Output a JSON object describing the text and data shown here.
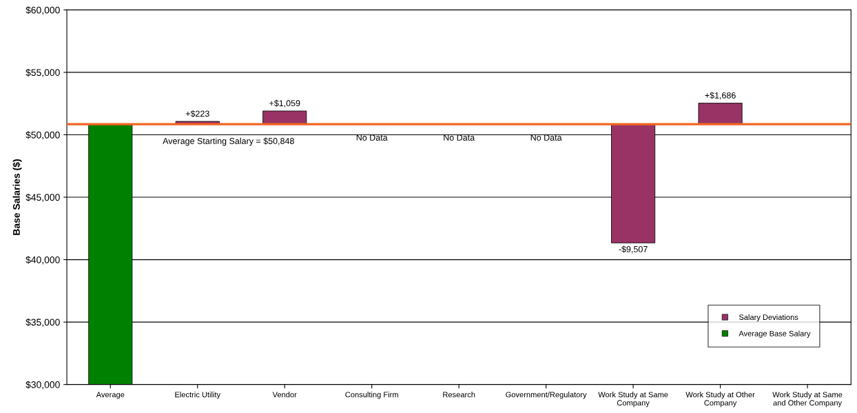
{
  "chart_data": {
    "type": "bar",
    "ylabel": "Base Salaries ($)",
    "categories": [
      "Average",
      "Electric Utility",
      "Vendor",
      "Consulting Firm",
      "Research",
      "Government/Regulatory",
      "Work Study at Same\nCompany",
      "Work Study at Other\nCompany",
      "Work Study at Same\nand Other Company"
    ],
    "series": [
      {
        "name": "Salary Deviations",
        "color": "#993366",
        "values": [
          null,
          223,
          1059,
          null,
          null,
          null,
          -9507,
          1686,
          null
        ],
        "base": [
          null,
          50848,
          50848,
          null,
          null,
          null,
          50848,
          50848,
          null
        ],
        "value_labels": [
          null,
          "+$223",
          "+$1,059",
          "No Data",
          "No Data",
          "No Data",
          "-$9,507",
          "+$1,686",
          null
        ]
      },
      {
        "name": "Average Base Salary",
        "color": "#008000",
        "values": [
          20848,
          null,
          null,
          null,
          null,
          null,
          null,
          null,
          null
        ],
        "base": [
          30000,
          null,
          null,
          null,
          null,
          null,
          null,
          null,
          null
        ]
      }
    ],
    "ref_lines": [
      {
        "axis": "y",
        "value": 50848,
        "label": "Average Starting Salary = $50,848",
        "color": "#f26522",
        "line_style": "solid"
      }
    ],
    "ylim": [
      30000,
      60000
    ],
    "yticks": [
      {
        "value": 30000,
        "label": "$30,000"
      },
      {
        "value": 35000,
        "label": "$35,000"
      },
      {
        "value": 40000,
        "label": "$40,000"
      },
      {
        "value": 45000,
        "label": "$45,000"
      },
      {
        "value": 50000,
        "label": "$50,000"
      },
      {
        "value": 55000,
        "label": "$55,000"
      },
      {
        "value": 60000,
        "label": "$60,000"
      }
    ],
    "grid": "y",
    "legend": "bottom right"
  }
}
